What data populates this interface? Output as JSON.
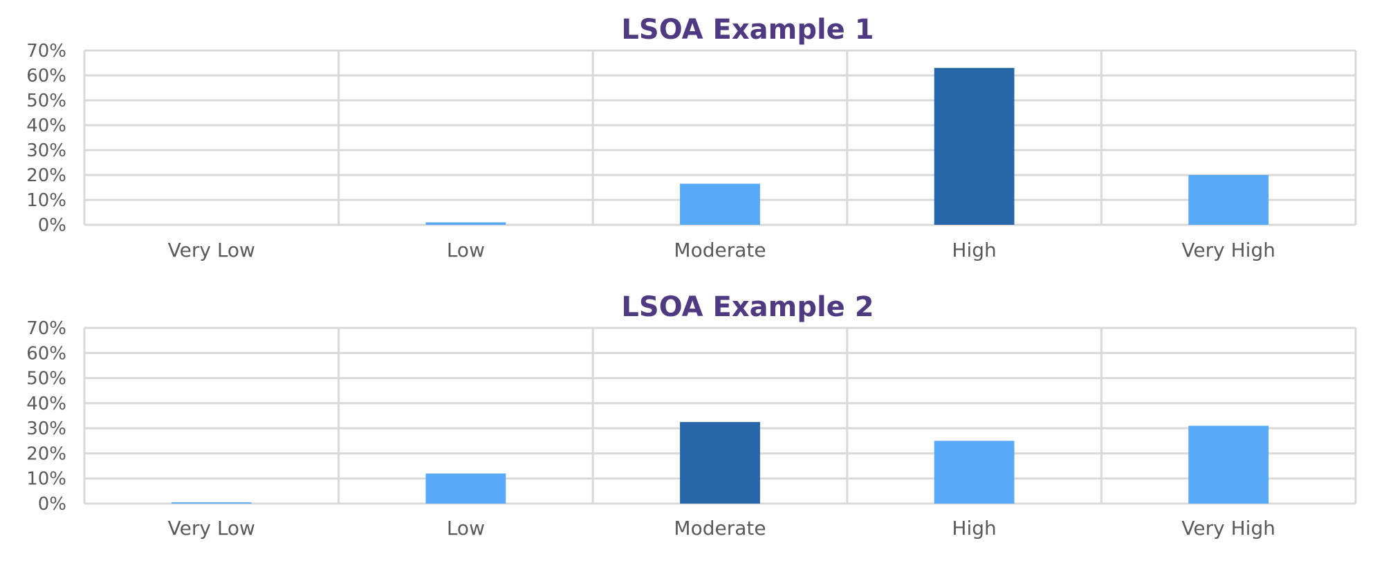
{
  "chart_data": [
    {
      "type": "bar",
      "title": "LSOA Example 1",
      "categories": [
        "Very Low",
        "Low",
        "Moderate",
        "High",
        "Very High"
      ],
      "values": [
        0,
        0.01,
        0.165,
        0.63,
        0.2
      ],
      "highlight_index": 3,
      "ylim": [
        0,
        0.7
      ],
      "yticks": [
        "0%",
        "10%",
        "20%",
        "30%",
        "40%",
        "50%",
        "60%",
        "70%"
      ],
      "xlabel": "",
      "ylabel": "",
      "grid": true,
      "legend": "none"
    },
    {
      "type": "bar",
      "title": "LSOA Example 2",
      "categories": [
        "Very Low",
        "Low",
        "Moderate",
        "High",
        "Very High"
      ],
      "values": [
        0.005,
        0.12,
        0.325,
        0.25,
        0.31
      ],
      "highlight_index": 2,
      "ylim": [
        0,
        0.7
      ],
      "yticks": [
        "0%",
        "10%",
        "20%",
        "30%",
        "40%",
        "50%",
        "60%",
        "70%"
      ],
      "xlabel": "",
      "ylabel": "",
      "grid": true,
      "legend": "none"
    }
  ],
  "colors": {
    "title": "#4f3a82",
    "bar": "#58aaf7",
    "bar_highlight": "#2767a9",
    "grid": "#d9d9d9",
    "tick_text": "#595959"
  }
}
